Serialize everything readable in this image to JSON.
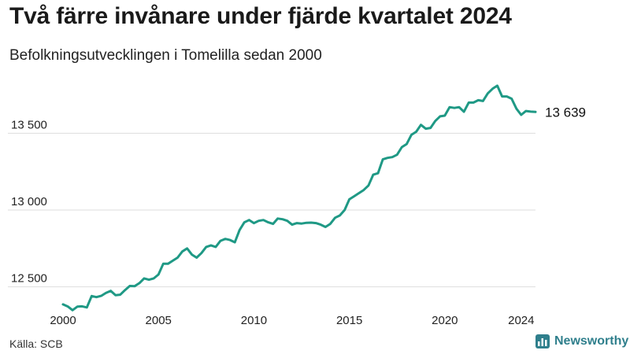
{
  "header": {
    "title": "Två färre invånare under fjärde kvartalet 2024",
    "subtitle": "Befolkningsutvecklingen i Tomelilla sedan 2000"
  },
  "footer": {
    "source": "Källa: SCB",
    "brand": "Newsworthy",
    "brand_icon": "bar-chart-icon"
  },
  "colors": {
    "line": "#1f9985",
    "grid": "#dddddd",
    "brand": "#2f7f8c"
  },
  "chart_data": {
    "type": "line",
    "title": "Två färre invånare under fjärde kvartalet 2024",
    "subtitle": "Befolkningsutvecklingen i Tomelilla sedan 2000",
    "xlabel": "",
    "ylabel": "",
    "x_tick_labels": [
      "2000",
      "2005",
      "2010",
      "2015",
      "2020",
      "2024"
    ],
    "y_ticks": [
      12500,
      13000,
      13500
    ],
    "y_tick_labels": [
      "12 500",
      "13 000",
      "13 500"
    ],
    "xlim": [
      2000.0,
      2024.75
    ],
    "ylim": [
      12370,
      13830
    ],
    "grid": true,
    "end_label": "13 639",
    "series": [
      {
        "name": "",
        "x": [
          2000.0,
          2000.25,
          2000.5,
          2000.75,
          2001.0,
          2001.25,
          2001.5,
          2001.75,
          2002.0,
          2002.25,
          2002.5,
          2002.75,
          2003.0,
          2003.25,
          2003.5,
          2003.75,
          2004.0,
          2004.25,
          2004.5,
          2004.75,
          2005.0,
          2005.25,
          2005.5,
          2005.75,
          2006.0,
          2006.25,
          2006.5,
          2006.75,
          2007.0,
          2007.25,
          2007.5,
          2007.75,
          2008.0,
          2008.25,
          2008.5,
          2008.75,
          2009.0,
          2009.25,
          2009.5,
          2009.75,
          2010.0,
          2010.25,
          2010.5,
          2010.75,
          2011.0,
          2011.25,
          2011.5,
          2011.75,
          2012.0,
          2012.25,
          2012.5,
          2012.75,
          2013.0,
          2013.25,
          2013.5,
          2013.75,
          2014.0,
          2014.25,
          2014.5,
          2014.75,
          2015.0,
          2015.25,
          2015.5,
          2015.75,
          2016.0,
          2016.25,
          2016.5,
          2016.75,
          2017.0,
          2017.25,
          2017.5,
          2017.75,
          2018.0,
          2018.25,
          2018.5,
          2018.75,
          2019.0,
          2019.25,
          2019.5,
          2019.75,
          2020.0,
          2020.25,
          2020.5,
          2020.75,
          2021.0,
          2021.25,
          2021.5,
          2021.75,
          2022.0,
          2022.25,
          2022.5,
          2022.75,
          2023.0,
          2023.25,
          2023.5,
          2023.75,
          2024.0,
          2024.25,
          2024.5,
          2024.75
        ],
        "values": [
          12386,
          12372,
          12348,
          12371,
          12373,
          12366,
          12440,
          12433,
          12441,
          12460,
          12474,
          12446,
          12449,
          12479,
          12506,
          12504,
          12524,
          12555,
          12546,
          12555,
          12580,
          12650,
          12650,
          12670,
          12690,
          12730,
          12750,
          12710,
          12690,
          12720,
          12760,
          12770,
          12760,
          12800,
          12812,
          12805,
          12790,
          12870,
          12920,
          12935,
          12915,
          12930,
          12935,
          12920,
          12910,
          12945,
          12940,
          12930,
          12905,
          12915,
          12912,
          12917,
          12918,
          12915,
          12905,
          12890,
          12910,
          12950,
          12965,
          13000,
          13070,
          13090,
          13110,
          13130,
          13160,
          13230,
          13240,
          13330,
          13340,
          13345,
          13360,
          13410,
          13430,
          13490,
          13510,
          13555,
          13530,
          13535,
          13580,
          13610,
          13615,
          13670,
          13665,
          13670,
          13640,
          13700,
          13700,
          13715,
          13710,
          13760,
          13790,
          13810,
          13740,
          13740,
          13725,
          13660,
          13620,
          13645,
          13641,
          13639
        ]
      }
    ]
  }
}
